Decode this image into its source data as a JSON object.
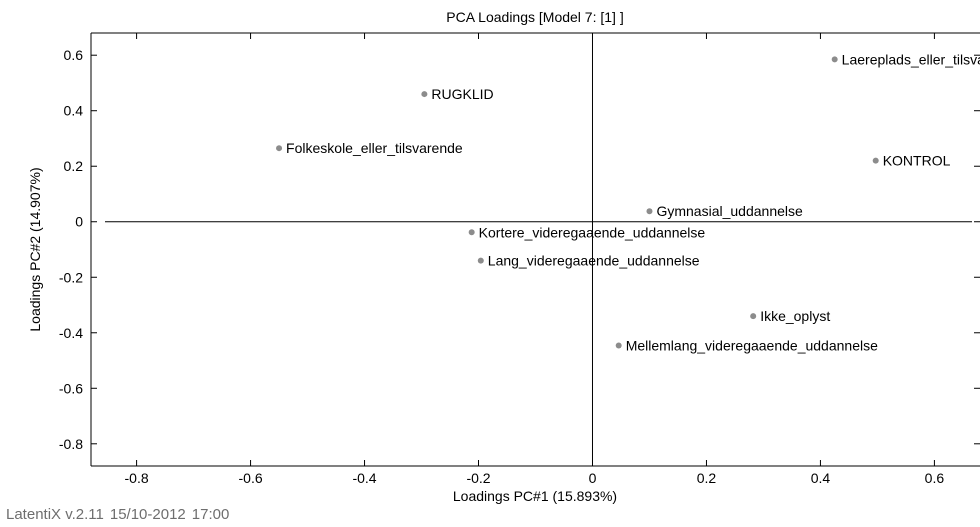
{
  "chart_data": {
    "type": "scatter",
    "title": "PCA Loadings [Model 7: [1] ]",
    "xlabel": "Loadings PC#1 (15.893%)",
    "ylabel": "Loadings PC#2 (14.907%)",
    "xlim": [
      -0.88,
      0.68
    ],
    "ylim": [
      -0.88,
      0.68
    ],
    "xticks": [
      -0.8,
      -0.6,
      -0.4,
      -0.2,
      0,
      0.2,
      0.4,
      0.6
    ],
    "xtick_labels": [
      "-0.8",
      "-0.6",
      "-0.4",
      "-0.2",
      "0",
      "0.2",
      "0.4",
      "0.6"
    ],
    "yticks": [
      0.6,
      0.4,
      0.2,
      0,
      -0.2,
      -0.4,
      -0.6,
      -0.8
    ],
    "ytick_labels": [
      "0.6",
      "0.4",
      "0.2",
      "0",
      "-0.2",
      "-0.4",
      "-0.6",
      "-0.8"
    ],
    "grid": false,
    "zero_lines": true,
    "point_color": "#8c8c8c",
    "points": [
      {
        "label": "Laereplads_eller_tilsvarende",
        "x": 0.425,
        "y": 0.585
      },
      {
        "label": "RUGKLID",
        "x": -0.295,
        "y": 0.46
      },
      {
        "label": "Folkeskole_eller_tilsvarende",
        "x": -0.55,
        "y": 0.265
      },
      {
        "label": "KONTROL",
        "x": 0.497,
        "y": 0.22
      },
      {
        "label": "Gymnasial_uddannelse",
        "x": 0.1,
        "y": 0.038
      },
      {
        "label": "Kortere_videregaaende_uddannelse",
        "x": -0.212,
        "y": -0.038
      },
      {
        "label": "Lang_videregaaende_uddannelse",
        "x": -0.196,
        "y": -0.14
      },
      {
        "label": "Ikke_oplyst",
        "x": 0.282,
        "y": -0.34
      },
      {
        "label": "Mellemlang_videregaaende_uddannelse",
        "x": 0.046,
        "y": -0.446
      }
    ]
  },
  "footer": {
    "software": "LatentiX v.2.11",
    "date": "15/10-2012",
    "time": "17:00"
  }
}
